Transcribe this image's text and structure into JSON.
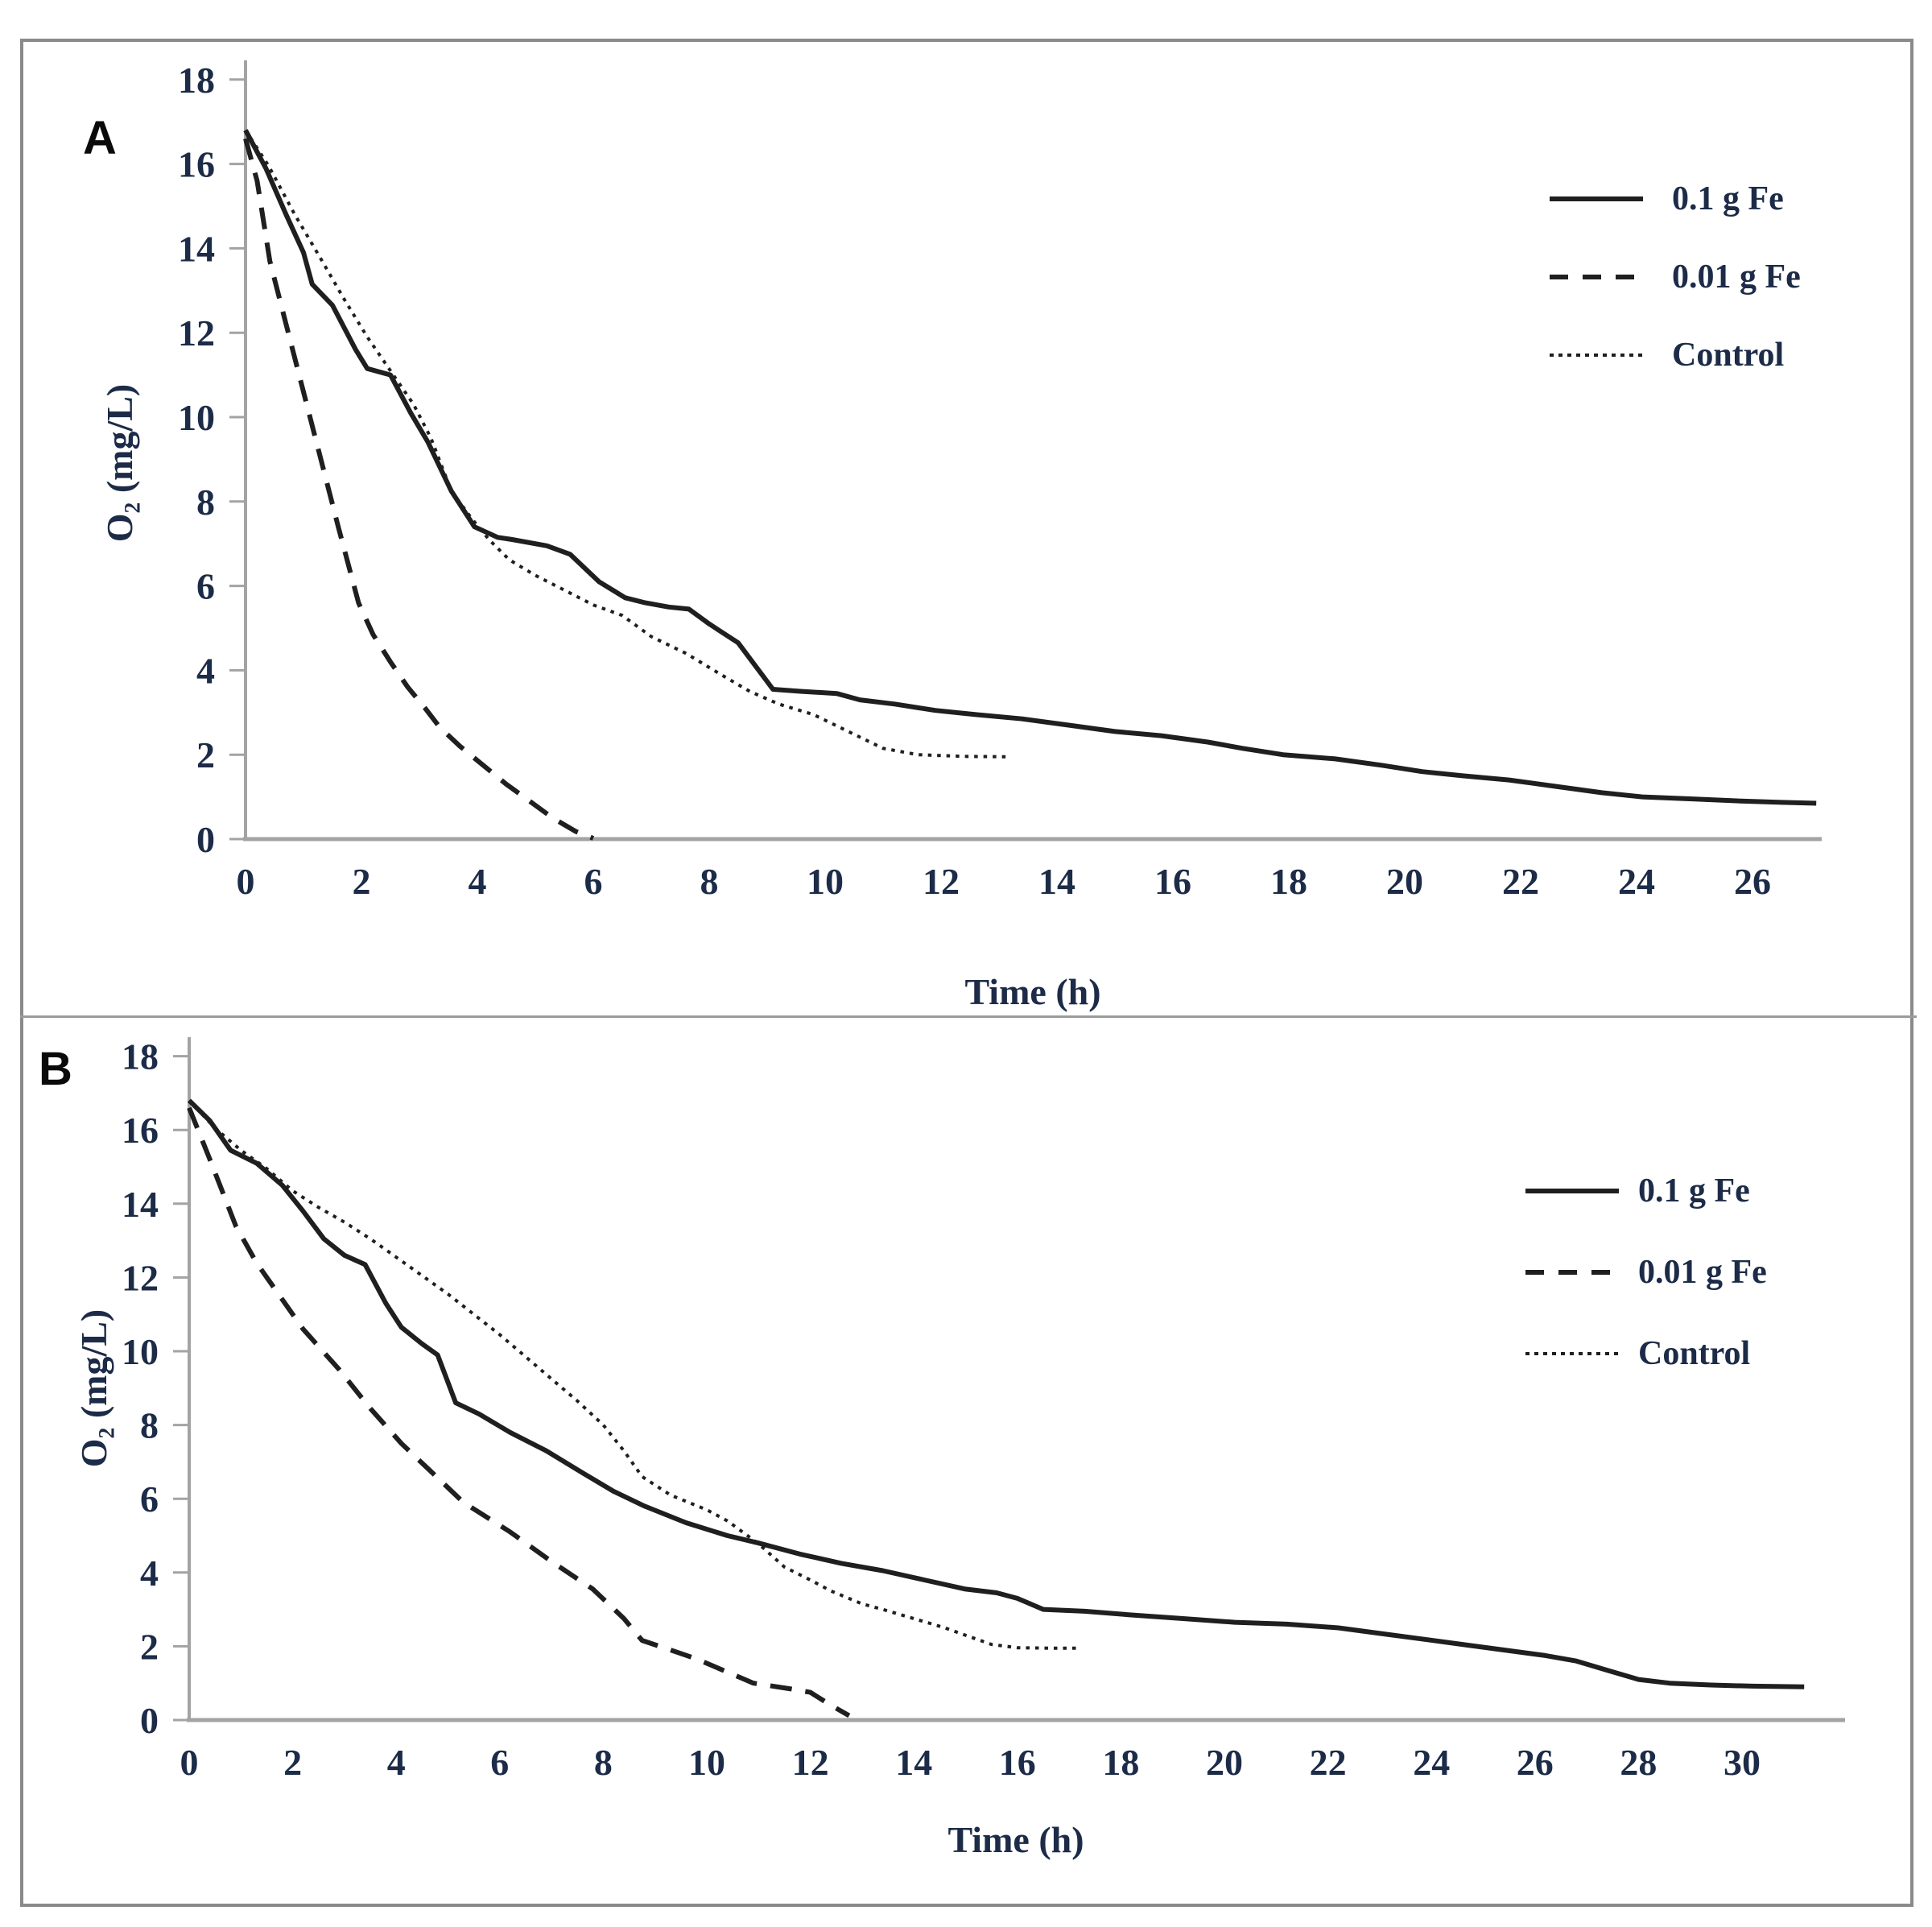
{
  "figure": {
    "background_color": "#ffffff",
    "frame_color": "#8a8a8a",
    "axis_color": "#a3a3a3",
    "curve_color": "#1f1f1f",
    "label_color": "#1c2b47"
  },
  "chart_data": [
    {
      "type": "line",
      "panel_label": "A",
      "xlabel": "Time (h)",
      "ylabel": "O₂ (mg/L)",
      "xlim": [
        0,
        27.5
      ],
      "ylim": [
        0,
        18
      ],
      "xticks": [
        0,
        2,
        4,
        6,
        8,
        10,
        12,
        14,
        16,
        18,
        20,
        22,
        24,
        26
      ],
      "yticks": [
        0,
        2,
        4,
        6,
        8,
        10,
        12,
        14,
        16,
        18
      ],
      "grid": false,
      "legend_position": "upper right",
      "series": [
        {
          "name": "0.1 g Fe",
          "line_style": "solid",
          "points": [
            [
              0,
              16.8
            ],
            [
              0.35,
              15.9
            ],
            [
              0.7,
              14.8
            ],
            [
              1.0,
              13.9
            ],
            [
              1.15,
              13.15
            ],
            [
              1.5,
              12.65
            ],
            [
              1.9,
              11.6
            ],
            [
              2.1,
              11.15
            ],
            [
              2.5,
              11.0
            ],
            [
              2.85,
              10.1
            ],
            [
              3.15,
              9.4
            ],
            [
              3.55,
              8.25
            ],
            [
              3.95,
              7.4
            ],
            [
              4.35,
              7.15
            ],
            [
              4.6,
              7.1
            ],
            [
              5.2,
              6.95
            ],
            [
              5.6,
              6.75
            ],
            [
              6.1,
              6.1
            ],
            [
              6.55,
              5.72
            ],
            [
              6.9,
              5.6
            ],
            [
              7.3,
              5.5
            ],
            [
              7.65,
              5.45
            ],
            [
              8.0,
              5.1
            ],
            [
              8.5,
              4.65
            ],
            [
              9.1,
              3.55
            ],
            [
              9.6,
              3.5
            ],
            [
              10.2,
              3.45
            ],
            [
              10.6,
              3.3
            ],
            [
              11.2,
              3.2
            ],
            [
              11.9,
              3.05
            ],
            [
              12.6,
              2.95
            ],
            [
              13.4,
              2.85
            ],
            [
              14.2,
              2.7
            ],
            [
              15.0,
              2.55
            ],
            [
              15.8,
              2.45
            ],
            [
              16.6,
              2.3
            ],
            [
              17.2,
              2.15
            ],
            [
              17.9,
              2.0
            ],
            [
              18.8,
              1.9
            ],
            [
              19.6,
              1.75
            ],
            [
              20.3,
              1.6
            ],
            [
              21.0,
              1.5
            ],
            [
              21.8,
              1.4
            ],
            [
              22.6,
              1.25
            ],
            [
              23.4,
              1.1
            ],
            [
              24.1,
              1.0
            ],
            [
              25.0,
              0.95
            ],
            [
              25.8,
              0.9
            ],
            [
              26.5,
              0.87
            ],
            [
              27.1,
              0.85
            ]
          ]
        },
        {
          "name": "0.01 g Fe",
          "line_style": "dashed",
          "points": [
            [
              0,
              16.6
            ],
            [
              0.2,
              15.6
            ],
            [
              0.42,
              13.7
            ],
            [
              0.7,
              12.2
            ],
            [
              1.0,
              10.6
            ],
            [
              1.3,
              9.0
            ],
            [
              1.6,
              7.4
            ],
            [
              1.95,
              5.6
            ],
            [
              2.2,
              4.85
            ],
            [
              2.5,
              4.2
            ],
            [
              2.8,
              3.6
            ],
            [
              3.1,
              3.1
            ],
            [
              3.35,
              2.65
            ],
            [
              3.7,
              2.2
            ],
            [
              4.1,
              1.75
            ],
            [
              4.5,
              1.3
            ],
            [
              4.9,
              0.9
            ],
            [
              5.3,
              0.5
            ],
            [
              5.7,
              0.18
            ],
            [
              6.0,
              0.02
            ]
          ]
        },
        {
          "name": "Control",
          "line_style": "dotted",
          "points": [
            [
              0,
              16.8
            ],
            [
              0.4,
              15.95
            ],
            [
              0.85,
              14.8
            ],
            [
              1.3,
              13.75
            ],
            [
              1.7,
              12.8
            ],
            [
              2.1,
              11.9
            ],
            [
              2.5,
              11.1
            ],
            [
              2.9,
              10.3
            ],
            [
              3.2,
              9.5
            ],
            [
              3.55,
              8.25
            ],
            [
              3.9,
              7.6
            ],
            [
              4.2,
              7.1
            ],
            [
              4.55,
              6.62
            ],
            [
              5.0,
              6.25
            ],
            [
              5.5,
              5.9
            ],
            [
              6.0,
              5.55
            ],
            [
              6.5,
              5.3
            ],
            [
              7.0,
              4.8
            ],
            [
              7.6,
              4.4
            ],
            [
              8.2,
              3.9
            ],
            [
              8.7,
              3.5
            ],
            [
              9.2,
              3.2
            ],
            [
              9.8,
              2.95
            ],
            [
              10.4,
              2.55
            ],
            [
              11.0,
              2.15
            ],
            [
              11.6,
              2.0
            ],
            [
              12.4,
              1.96
            ],
            [
              13.2,
              1.95
            ]
          ]
        }
      ]
    },
    {
      "type": "line",
      "panel_label": "B",
      "xlabel": "Time (h)",
      "ylabel": "O₂ (mg/L)",
      "xlim": [
        0,
        32
      ],
      "ylim": [
        0,
        18
      ],
      "xticks": [
        0,
        2,
        4,
        6,
        8,
        10,
        12,
        14,
        16,
        18,
        20,
        22,
        24,
        26,
        28,
        30
      ],
      "yticks": [
        0,
        2,
        4,
        6,
        8,
        10,
        12,
        14,
        16,
        18
      ],
      "grid": false,
      "legend_position": "upper right",
      "series": [
        {
          "name": "0.1 g Fe",
          "line_style": "solid",
          "points": [
            [
              0,
              16.8
            ],
            [
              0.4,
              16.25
            ],
            [
              0.8,
              15.45
            ],
            [
              1.3,
              15.1
            ],
            [
              1.8,
              14.5
            ],
            [
              2.2,
              13.8
            ],
            [
              2.6,
              13.05
            ],
            [
              3.0,
              12.6
            ],
            [
              3.4,
              12.35
            ],
            [
              3.8,
              11.3
            ],
            [
              4.1,
              10.65
            ],
            [
              4.5,
              10.2
            ],
            [
              4.8,
              9.9
            ],
            [
              5.15,
              8.6
            ],
            [
              5.6,
              8.3
            ],
            [
              6.2,
              7.8
            ],
            [
              6.9,
              7.3
            ],
            [
              7.6,
              6.7
            ],
            [
              8.2,
              6.2
            ],
            [
              8.8,
              5.8
            ],
            [
              9.6,
              5.35
            ],
            [
              10.4,
              5.0
            ],
            [
              11.0,
              4.8
            ],
            [
              11.8,
              4.5
            ],
            [
              12.6,
              4.25
            ],
            [
              13.4,
              4.05
            ],
            [
              14.2,
              3.8
            ],
            [
              15.0,
              3.55
            ],
            [
              15.6,
              3.45
            ],
            [
              16.0,
              3.3
            ],
            [
              16.5,
              3.0
            ],
            [
              17.3,
              2.95
            ],
            [
              18.2,
              2.85
            ],
            [
              19.2,
              2.75
            ],
            [
              20.2,
              2.65
            ],
            [
              21.2,
              2.6
            ],
            [
              22.2,
              2.5
            ],
            [
              23.0,
              2.35
            ],
            [
              23.8,
              2.2
            ],
            [
              24.6,
              2.05
            ],
            [
              25.4,
              1.9
            ],
            [
              26.2,
              1.75
            ],
            [
              26.8,
              1.6
            ],
            [
              27.4,
              1.35
            ],
            [
              28.0,
              1.1
            ],
            [
              28.6,
              1.0
            ],
            [
              29.4,
              0.95
            ],
            [
              30.2,
              0.92
            ],
            [
              31.2,
              0.9
            ]
          ]
        },
        {
          "name": "0.01 g Fe",
          "line_style": "dashed",
          "points": [
            [
              0,
              16.6
            ],
            [
              0.4,
              15.2
            ],
            [
              0.9,
              13.4
            ],
            [
              1.3,
              12.4
            ],
            [
              1.7,
              11.6
            ],
            [
              2.2,
              10.6
            ],
            [
              2.9,
              9.5
            ],
            [
              3.5,
              8.45
            ],
            [
              4.1,
              7.5
            ],
            [
              4.7,
              6.7
            ],
            [
              5.3,
              5.9
            ],
            [
              6.2,
              5.1
            ],
            [
              7.0,
              4.3
            ],
            [
              7.8,
              3.55
            ],
            [
              8.4,
              2.75
            ],
            [
              8.75,
              2.16
            ],
            [
              9.3,
              1.9
            ],
            [
              9.8,
              1.66
            ],
            [
              10.4,
              1.3
            ],
            [
              10.9,
              1.0
            ],
            [
              11.6,
              0.85
            ],
            [
              12.0,
              0.75
            ],
            [
              12.4,
              0.4
            ],
            [
              12.75,
              0.12
            ]
          ]
        },
        {
          "name": "Control",
          "line_style": "dotted",
          "points": [
            [
              0,
              16.8
            ],
            [
              0.5,
              16.05
            ],
            [
              1.0,
              15.45
            ],
            [
              1.5,
              14.95
            ],
            [
              2.0,
              14.35
            ],
            [
              2.5,
              13.9
            ],
            [
              3.0,
              13.5
            ],
            [
              3.5,
              13.05
            ],
            [
              4.0,
              12.55
            ],
            [
              4.5,
              12.05
            ],
            [
              5.0,
              11.55
            ],
            [
              5.5,
              11.0
            ],
            [
              6.0,
              10.45
            ],
            [
              6.5,
              9.85
            ],
            [
              7.0,
              9.25
            ],
            [
              7.5,
              8.65
            ],
            [
              8.0,
              8.0
            ],
            [
              8.4,
              7.3
            ],
            [
              8.75,
              6.6
            ],
            [
              9.3,
              6.1
            ],
            [
              10.0,
              5.7
            ],
            [
              10.4,
              5.4
            ],
            [
              11.0,
              4.78
            ],
            [
              11.5,
              4.15
            ],
            [
              12.0,
              3.8
            ],
            [
              12.4,
              3.5
            ],
            [
              13.0,
              3.15
            ],
            [
              13.4,
              3.0
            ],
            [
              14.0,
              2.75
            ],
            [
              14.6,
              2.5
            ],
            [
              15.0,
              2.3
            ],
            [
              15.5,
              2.05
            ],
            [
              16.0,
              1.96
            ],
            [
              16.6,
              1.95
            ],
            [
              17.2,
              1.95
            ]
          ]
        }
      ]
    }
  ]
}
